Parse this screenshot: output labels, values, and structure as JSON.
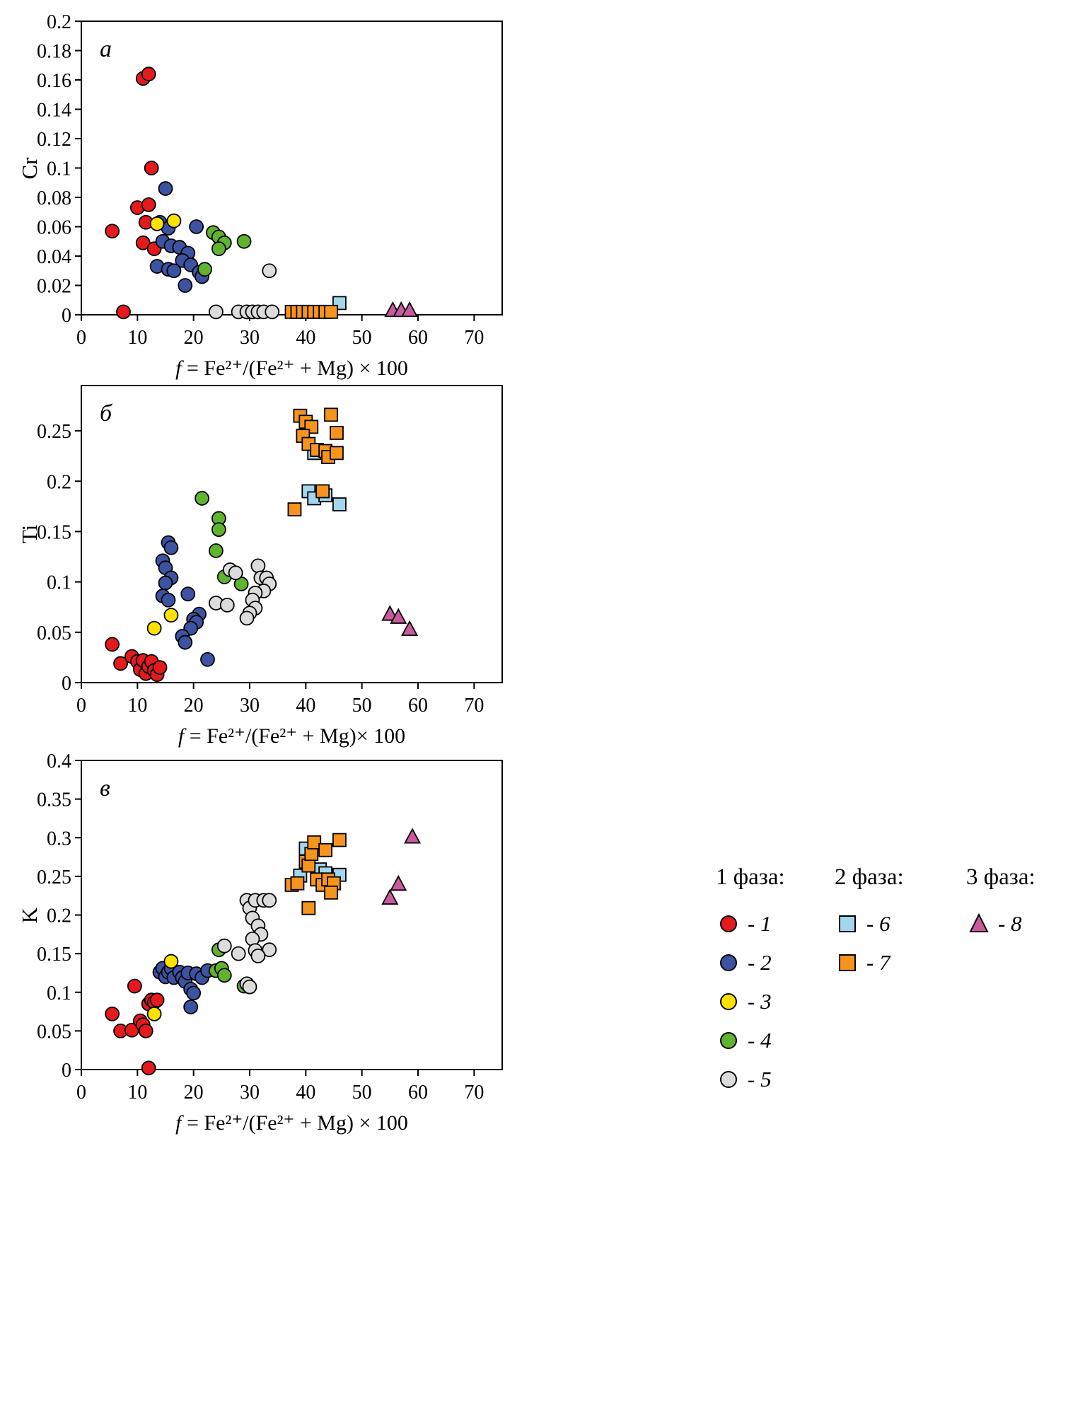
{
  "page": {
    "background": "#ffffff"
  },
  "series_styles": {
    "1": {
      "marker": "circle",
      "color": "#e41a1c",
      "name": "red-circle"
    },
    "2": {
      "marker": "circle",
      "color": "#3c53a2",
      "name": "blue-circle"
    },
    "3": {
      "marker": "circle",
      "color": "#ffe100",
      "name": "yellow-circle"
    },
    "4": {
      "marker": "circle",
      "color": "#60b32e",
      "name": "green-circle"
    },
    "5": {
      "marker": "circle",
      "color": "#dcdcdc",
      "name": "gray-circle"
    },
    "6": {
      "marker": "square",
      "color": "#a3d5ee",
      "name": "lightblue-square"
    },
    "7": {
      "marker": "square",
      "color": "#f7941e",
      "name": "orange-square"
    },
    "8": {
      "marker": "triangle",
      "color": "#ca5a9f",
      "name": "magenta-triangle"
    }
  },
  "chart_data": [
    {
      "type": "scatter",
      "letter": "a",
      "ylabel": "Cr",
      "xlabel_f": "f",
      "xlabel_rest": " = Fe²⁺/(Fe²⁺ + Mg) × 100",
      "xlim": [
        0,
        75
      ],
      "ylim": [
        0,
        0.2
      ],
      "xticks": [
        "0",
        "10",
        "20",
        "30",
        "40",
        "50",
        "60",
        "70"
      ],
      "yticks": [
        "0",
        "0.02",
        "0.04",
        "0.06",
        "0.08",
        "0.1",
        "0.12",
        "0.14",
        "0.16",
        "0.18",
        "0.2"
      ],
      "series": [
        {
          "name": "1",
          "points": [
            [
              5.5,
              0.057
            ],
            [
              10,
              0.073
            ],
            [
              11,
              0.161
            ],
            [
              12,
              0.164
            ],
            [
              12.5,
              0.1
            ],
            [
              11.5,
              0.063
            ],
            [
              12,
              0.075
            ],
            [
              11,
              0.049
            ],
            [
              13,
              0.045
            ],
            [
              7.5,
              0.002
            ]
          ]
        },
        {
          "name": "2",
          "points": [
            [
              15,
              0.086
            ],
            [
              14,
              0.063
            ],
            [
              15.5,
              0.059
            ],
            [
              20.5,
              0.06
            ],
            [
              14.5,
              0.05
            ],
            [
              16,
              0.047
            ],
            [
              17.5,
              0.046
            ],
            [
              19,
              0.042
            ],
            [
              18,
              0.037
            ],
            [
              13.5,
              0.033
            ],
            [
              15.5,
              0.031
            ],
            [
              16.5,
              0.03
            ],
            [
              19.5,
              0.034
            ],
            [
              21,
              0.029
            ],
            [
              18.5,
              0.02
            ],
            [
              21.5,
              0.026
            ]
          ]
        },
        {
          "name": "3",
          "points": [
            [
              13.5,
              0.062
            ],
            [
              16.5,
              0.064
            ]
          ]
        },
        {
          "name": "4",
          "points": [
            [
              23.5,
              0.056
            ],
            [
              24.5,
              0.053
            ],
            [
              25.5,
              0.049
            ],
            [
              24.5,
              0.045
            ],
            [
              29,
              0.05
            ],
            [
              22,
              0.031
            ]
          ]
        },
        {
          "name": "5",
          "points": [
            [
              33.5,
              0.03
            ],
            [
              24,
              0.002
            ],
            [
              28,
              0.002
            ],
            [
              29.5,
              0.002
            ],
            [
              30.5,
              0.002
            ],
            [
              31.5,
              0.002
            ],
            [
              32.5,
              0.002
            ],
            [
              34,
              0.002
            ]
          ]
        },
        {
          "name": "6",
          "points": [
            [
              46,
              0.008
            ]
          ]
        },
        {
          "name": "7",
          "points": [
            [
              37.5,
              0.002
            ],
            [
              38.5,
              0.002
            ],
            [
              39.5,
              0.002
            ],
            [
              40.5,
              0.002
            ],
            [
              41.5,
              0.002
            ],
            [
              42.5,
              0.002
            ],
            [
              43.5,
              0.002
            ],
            [
              44.5,
              0.002
            ]
          ]
        },
        {
          "name": "8",
          "points": [
            [
              55.5,
              0.003
            ],
            [
              57,
              0.003
            ],
            [
              58.5,
              0.003
            ]
          ]
        }
      ]
    },
    {
      "type": "scatter",
      "letter": "б",
      "ylabel": "Ti",
      "xlabel_f": "f",
      "xlabel_rest": " = Fe²⁺/(Fe²⁺ + Mg)× 100",
      "xlim": [
        0,
        75
      ],
      "ylim": [
        0,
        0.295
      ],
      "xticks": [
        "0",
        "10",
        "20",
        "30",
        "40",
        "50",
        "60",
        "70"
      ],
      "yticks": [
        "0",
        "0.05",
        "0.1",
        "0.15",
        "0.2",
        "0.25"
      ],
      "series": [
        {
          "name": "1",
          "points": [
            [
              5.5,
              0.038
            ],
            [
              7,
              0.019
            ],
            [
              9,
              0.026
            ],
            [
              10,
              0.021
            ],
            [
              10.5,
              0.013
            ],
            [
              11,
              0.022
            ],
            [
              11.5,
              0.009
            ],
            [
              12,
              0.016
            ],
            [
              12.5,
              0.021
            ],
            [
              13,
              0.012
            ],
            [
              13.5,
              0.008
            ],
            [
              14,
              0.015
            ]
          ]
        },
        {
          "name": "2",
          "points": [
            [
              15.5,
              0.139
            ],
            [
              16,
              0.134
            ],
            [
              14.5,
              0.121
            ],
            [
              15,
              0.114
            ],
            [
              16,
              0.104
            ],
            [
              15,
              0.099
            ],
            [
              14.5,
              0.086
            ],
            [
              15.5,
              0.082
            ],
            [
              19,
              0.088
            ],
            [
              21,
              0.068
            ],
            [
              20,
              0.063
            ],
            [
              20.5,
              0.06
            ],
            [
              19.5,
              0.054
            ],
            [
              18,
              0.046
            ],
            [
              18.5,
              0.04
            ],
            [
              22.5,
              0.023
            ]
          ]
        },
        {
          "name": "3",
          "points": [
            [
              13,
              0.054
            ],
            [
              16,
              0.067
            ]
          ]
        },
        {
          "name": "4",
          "points": [
            [
              21.5,
              0.183
            ],
            [
              24.5,
              0.163
            ],
            [
              24.5,
              0.152
            ],
            [
              24,
              0.131
            ],
            [
              25.5,
              0.105
            ],
            [
              28.5,
              0.098
            ]
          ]
        },
        {
          "name": "5",
          "points": [
            [
              26.5,
              0.112
            ],
            [
              27.5,
              0.109
            ],
            [
              31.5,
              0.116
            ],
            [
              32,
              0.104
            ],
            [
              33,
              0.104
            ],
            [
              33.5,
              0.098
            ],
            [
              32.5,
              0.091
            ],
            [
              31,
              0.089
            ],
            [
              30.5,
              0.082
            ],
            [
              31,
              0.074
            ],
            [
              30,
              0.069
            ],
            [
              29.5,
              0.064
            ],
            [
              24,
              0.079
            ],
            [
              26,
              0.077
            ]
          ]
        },
        {
          "name": "6",
          "points": [
            [
              40.5,
              0.19
            ],
            [
              41.5,
              0.183
            ],
            [
              43.5,
              0.186
            ],
            [
              46,
              0.177
            ],
            [
              41.5,
              0.228
            ]
          ]
        },
        {
          "name": "7",
          "points": [
            [
              39,
              0.265
            ],
            [
              40,
              0.259
            ],
            [
              41,
              0.254
            ],
            [
              39.5,
              0.245
            ],
            [
              40.5,
              0.237
            ],
            [
              42,
              0.231
            ],
            [
              43.5,
              0.23
            ],
            [
              44.5,
              0.266
            ],
            [
              45.5,
              0.248
            ],
            [
              44,
              0.224
            ],
            [
              45.5,
              0.228
            ],
            [
              38,
              0.172
            ],
            [
              43,
              0.19
            ]
          ]
        },
        {
          "name": "8",
          "points": [
            [
              55,
              0.068
            ],
            [
              56.5,
              0.065
            ],
            [
              58.5,
              0.053
            ]
          ]
        }
      ]
    },
    {
      "type": "scatter",
      "letter": "в",
      "ylabel": "K",
      "xlabel_f": "f",
      "xlabel_rest": " = Fe²⁺/(Fe²⁺ + Mg) × 100",
      "xlim": [
        0,
        75
      ],
      "ylim": [
        0,
        0.4
      ],
      "xticks": [
        "0",
        "10",
        "20",
        "30",
        "40",
        "50",
        "60",
        "70"
      ],
      "yticks": [
        "0",
        "0.05",
        "0.1",
        "0.15",
        "0.2",
        "0.25",
        "0.3",
        "0.35",
        "0.4"
      ],
      "series": [
        {
          "name": "1",
          "points": [
            [
              5.5,
              0.072
            ],
            [
              7,
              0.05
            ],
            [
              9,
              0.051
            ],
            [
              9.5,
              0.108
            ],
            [
              10.5,
              0.063
            ],
            [
              11,
              0.058
            ],
            [
              11.5,
              0.05
            ],
            [
              12,
              0.085
            ],
            [
              12.5,
              0.09
            ],
            [
              13,
              0.087
            ],
            [
              13.5,
              0.09
            ],
            [
              12,
              0.002
            ]
          ]
        },
        {
          "name": "2",
          "points": [
            [
              14,
              0.126
            ],
            [
              14.5,
              0.131
            ],
            [
              15,
              0.12
            ],
            [
              15.5,
              0.126
            ],
            [
              16,
              0.131
            ],
            [
              16.5,
              0.119
            ],
            [
              17.5,
              0.126
            ],
            [
              18,
              0.119
            ],
            [
              18.5,
              0.114
            ],
            [
              19,
              0.125
            ],
            [
              19.5,
              0.104
            ],
            [
              20,
              0.099
            ],
            [
              20.5,
              0.124
            ],
            [
              21.5,
              0.119
            ],
            [
              19.5,
              0.081
            ],
            [
              22.5,
              0.128
            ]
          ]
        },
        {
          "name": "3",
          "points": [
            [
              13,
              0.072
            ],
            [
              16,
              0.14
            ]
          ]
        },
        {
          "name": "4",
          "points": [
            [
              24,
              0.128
            ],
            [
              25,
              0.131
            ],
            [
              25.5,
              0.122
            ],
            [
              24.5,
              0.155
            ],
            [
              29,
              0.108
            ]
          ]
        },
        {
          "name": "5",
          "points": [
            [
              25.5,
              0.16
            ],
            [
              28,
              0.15
            ],
            [
              29.5,
              0.219
            ],
            [
              30,
              0.209
            ],
            [
              30.5,
              0.196
            ],
            [
              31,
              0.219
            ],
            [
              31.5,
              0.186
            ],
            [
              32,
              0.175
            ],
            [
              32.5,
              0.219
            ],
            [
              33.5,
              0.219
            ],
            [
              33.5,
              0.155
            ],
            [
              30.5,
              0.169
            ],
            [
              31,
              0.154
            ],
            [
              31.5,
              0.147
            ],
            [
              29.5,
              0.111
            ],
            [
              30,
              0.107
            ]
          ]
        },
        {
          "name": "6",
          "points": [
            [
              39,
              0.251
            ],
            [
              40,
              0.286
            ],
            [
              42.5,
              0.259
            ],
            [
              43.5,
              0.254
            ],
            [
              46,
              0.252
            ]
          ]
        },
        {
          "name": "7",
          "points": [
            [
              37.5,
              0.239
            ],
            [
              38.5,
              0.241
            ],
            [
              40,
              0.269
            ],
            [
              40.5,
              0.264
            ],
            [
              41,
              0.279
            ],
            [
              41.5,
              0.294
            ],
            [
              42,
              0.246
            ],
            [
              43,
              0.239
            ],
            [
              44,
              0.246
            ],
            [
              45,
              0.241
            ],
            [
              46,
              0.297
            ],
            [
              43.5,
              0.284
            ],
            [
              40.5,
              0.209
            ],
            [
              44.5,
              0.229
            ]
          ]
        },
        {
          "name": "8",
          "points": [
            [
              55,
              0.222
            ],
            [
              56.5,
              0.24
            ],
            [
              59,
              0.301
            ]
          ]
        }
      ]
    }
  ],
  "legend": {
    "groups": [
      {
        "title": "1 фаза:",
        "items": [
          {
            "series": "1",
            "label": "- 1"
          },
          {
            "series": "2",
            "label": "- 2"
          },
          {
            "series": "3",
            "label": "- 3"
          },
          {
            "series": "4",
            "label": "- 4"
          },
          {
            "series": "5",
            "label": "- 5"
          }
        ]
      },
      {
        "title": "2 фаза:",
        "items": [
          {
            "series": "6",
            "label": "- 6"
          },
          {
            "series": "7",
            "label": "- 7"
          }
        ]
      },
      {
        "title": "3 фаза:",
        "items": [
          {
            "series": "8",
            "label": "- 8"
          }
        ]
      }
    ]
  }
}
